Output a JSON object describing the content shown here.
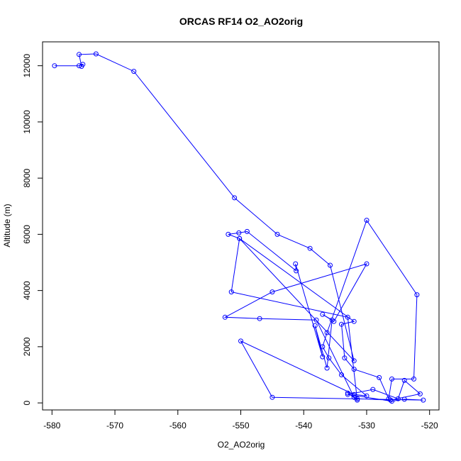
{
  "chart_data": {
    "type": "line",
    "title": "ORCAS RF14 O2_AO2orig",
    "xlabel": "O2_AO2orig",
    "ylabel": "Altitude (m)",
    "xlim": [
      -581.5,
      -518.5
    ],
    "ylim": [
      -250,
      12850
    ],
    "xticks": [
      -580,
      -570,
      -560,
      -550,
      -540,
      -530,
      -520
    ],
    "yticks": [
      0,
      2000,
      4000,
      6000,
      8000,
      10000,
      12000
    ],
    "grid": false,
    "legend": "none",
    "colors": {
      "series": "#0000ff"
    },
    "series": [
      {
        "x": [
          -579.6,
          -575.7,
          -575.1,
          -575.3,
          -575.7,
          -573.0,
          -567.0,
          -551.0,
          -544.2,
          -539.0,
          -535.8,
          -532.0,
          -550.2,
          -552.0,
          -550.3,
          -549.0,
          -541.2,
          -541.3,
          -537.0,
          -538.2,
          -536.3,
          -535.5,
          -537.0,
          -535.2,
          -530.0,
          -545.0,
          -552.5,
          -547.0,
          -538.0,
          -532.0,
          -531.5,
          -526.2,
          -521.5,
          -524.0,
          -525.0,
          -529.0,
          -533.0,
          -526.0,
          -524.0,
          -521.0,
          -545.0,
          -550.0,
          -532.0,
          -530.0,
          -534.0,
          -536.0,
          -537.0,
          -536.3,
          -530.0,
          -522.0,
          -522.5,
          -526.0,
          -526.5,
          -528.0,
          -532.0,
          -533.5,
          -534.0,
          -532.0,
          -550.2,
          -551.5,
          -533.0,
          -531.5,
          -533.0
        ],
        "y": [
          12000,
          12000,
          12050,
          11980,
          12400,
          12420,
          11800,
          7300,
          6000,
          5500,
          4900,
          1500,
          5850,
          6000,
          6050,
          6100,
          4700,
          4950,
          1640,
          2750,
          1240,
          2950,
          3150,
          2900,
          4950,
          3950,
          3050,
          3000,
          2950,
          200,
          150,
          100,
          320,
          800,
          150,
          480,
          300,
          60,
          130,
          100,
          200,
          2200,
          300,
          250,
          1000,
          1600,
          2000,
          2500,
          6500,
          3850,
          850,
          850,
          150,
          900,
          1200,
          1600,
          2800,
          2900,
          5850,
          3950,
          3050,
          100,
          350
        ]
      }
    ]
  }
}
